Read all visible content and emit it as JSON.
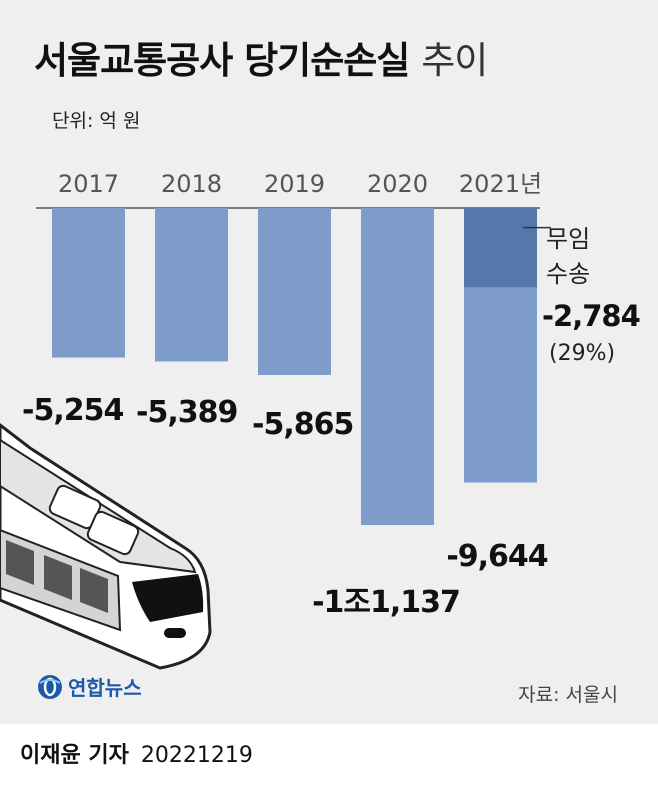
{
  "title": {
    "main": "서울교통공사 당기순손실",
    "sub": "추이"
  },
  "unit_label": "단위: 억 원",
  "source": "자료: 서울시",
  "logo_text": "연합뉴스",
  "credit": {
    "reporter": "이재윤 기자",
    "date": "20221219"
  },
  "colors": {
    "bar": "#7d9cc9",
    "bar_highlight": "#5578aa",
    "panel": "#efefef",
    "axis": "#555555"
  },
  "chart_data": {
    "type": "bar",
    "title": "서울교통공사 당기순손실 추이",
    "unit": "단위: 억 원",
    "categories": [
      "2017",
      "2018",
      "2019",
      "2020",
      "2021년"
    ],
    "values": [
      -5254,
      -5389,
      -5865,
      -11137,
      -9644
    ],
    "value_labels": [
      "-5,254",
      "-5,389",
      "-5,865",
      "-1조1,137",
      "-9,644"
    ],
    "ylim": [
      -11137,
      0
    ],
    "annotation": {
      "category": "2021년",
      "label_lines": [
        "무임",
        "수송"
      ],
      "value": -2784,
      "value_label": "-2,784",
      "share_label": "(29%)"
    },
    "grid": false,
    "legend": "none"
  }
}
